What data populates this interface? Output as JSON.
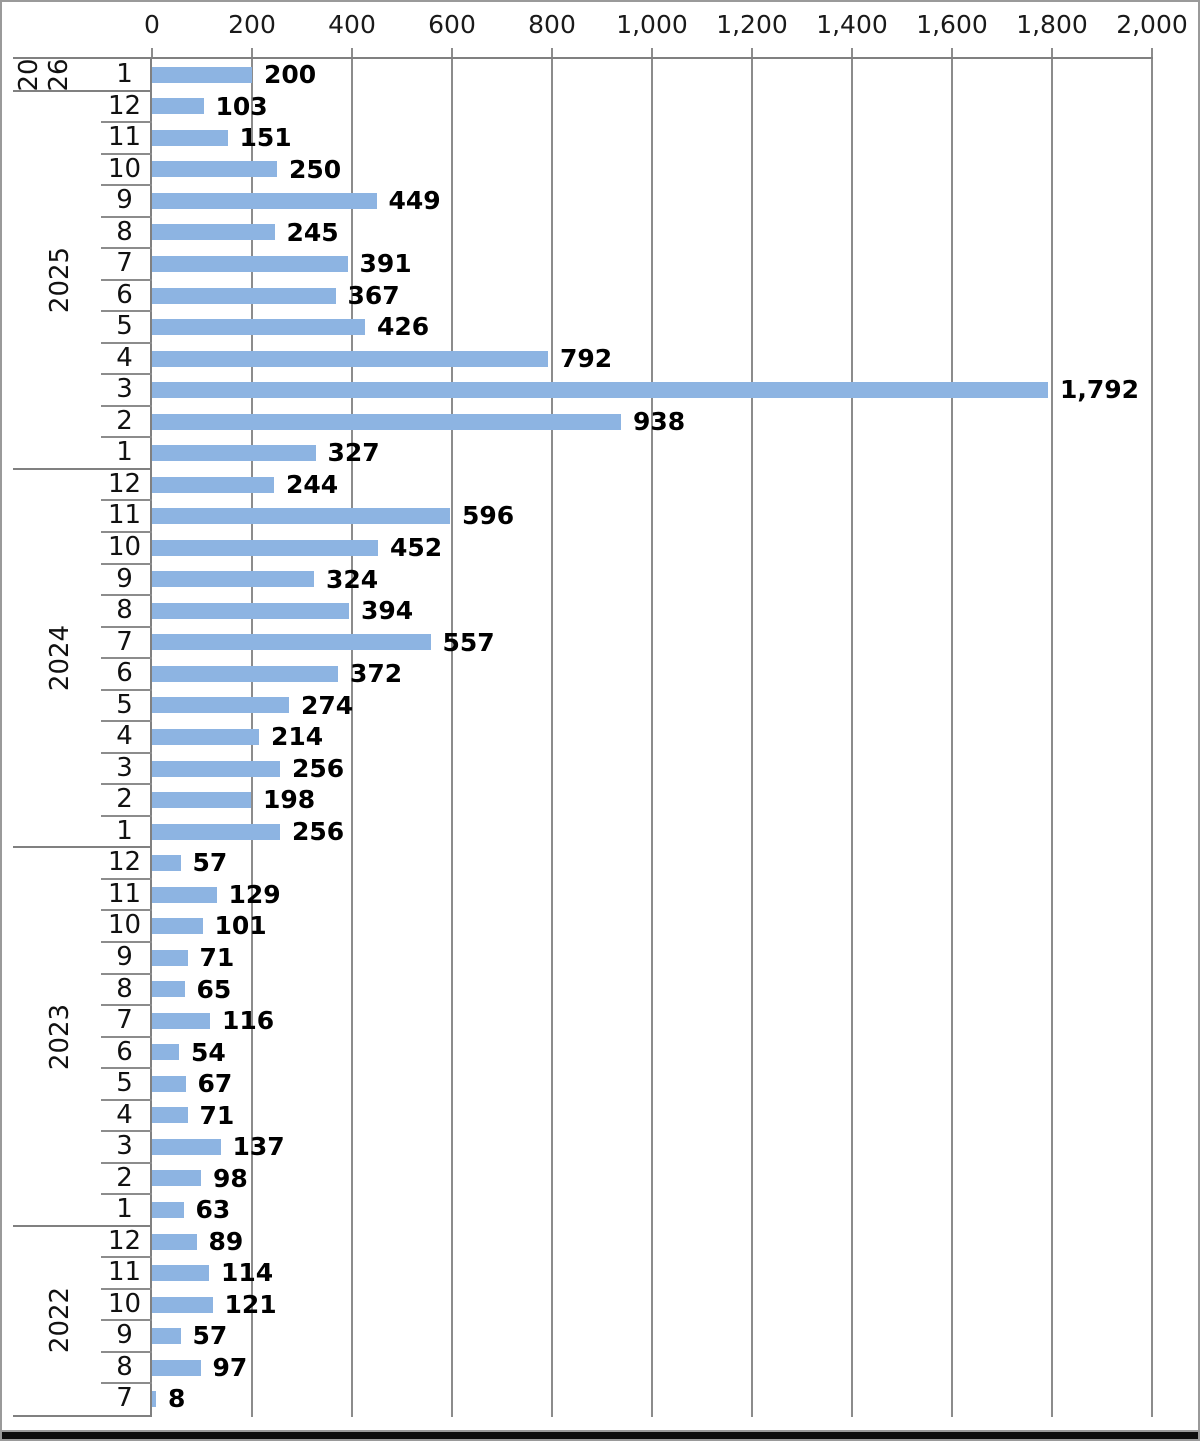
{
  "chart_data": {
    "type": "bar",
    "orientation": "horizontal",
    "title": "",
    "xlabel": "",
    "ylabel": "",
    "value_axis": {
      "min": 0,
      "max": 2000,
      "step": 200,
      "position": "top",
      "tick_labels": [
        "0",
        "200",
        "400",
        "600",
        "800",
        "1,000",
        "1,200",
        "1,400",
        "1,600",
        "1,800",
        "2,000"
      ],
      "grid": true
    },
    "category_axis": {
      "levels": [
        "year",
        "month"
      ],
      "order": "newest-first-top"
    },
    "groups": [
      {
        "year": "2026",
        "rotated_lines": [
          "20",
          "26"
        ],
        "months": [
          {
            "month": "1",
            "value": 200
          }
        ]
      },
      {
        "year": "2025",
        "months": [
          {
            "month": "12",
            "value": 103
          },
          {
            "month": "11",
            "value": 151
          },
          {
            "month": "10",
            "value": 250
          },
          {
            "month": "9",
            "value": 449
          },
          {
            "month": "8",
            "value": 245
          },
          {
            "month": "7",
            "value": 391
          },
          {
            "month": "6",
            "value": 367
          },
          {
            "month": "5",
            "value": 426
          },
          {
            "month": "4",
            "value": 792
          },
          {
            "month": "3",
            "value": 1792
          },
          {
            "month": "2",
            "value": 938
          },
          {
            "month": "1",
            "value": 327
          }
        ]
      },
      {
        "year": "2024",
        "months": [
          {
            "month": "12",
            "value": 244
          },
          {
            "month": "11",
            "value": 596
          },
          {
            "month": "10",
            "value": 452
          },
          {
            "month": "9",
            "value": 324
          },
          {
            "month": "8",
            "value": 394
          },
          {
            "month": "7",
            "value": 557
          },
          {
            "month": "6",
            "value": 372
          },
          {
            "month": "5",
            "value": 274
          },
          {
            "month": "4",
            "value": 214
          },
          {
            "month": "3",
            "value": 256
          },
          {
            "month": "2",
            "value": 198
          },
          {
            "month": "1",
            "value": 256
          }
        ]
      },
      {
        "year": "2023",
        "months": [
          {
            "month": "12",
            "value": 57
          },
          {
            "month": "11",
            "value": 129
          },
          {
            "month": "10",
            "value": 101
          },
          {
            "month": "9",
            "value": 71
          },
          {
            "month": "8",
            "value": 65
          },
          {
            "month": "7",
            "value": 116
          },
          {
            "month": "6",
            "value": 54
          },
          {
            "month": "5",
            "value": 67
          },
          {
            "month": "4",
            "value": 71
          },
          {
            "month": "3",
            "value": 137
          },
          {
            "month": "2",
            "value": 98
          },
          {
            "month": "1",
            "value": 63
          }
        ]
      },
      {
        "year": "2022",
        "months": [
          {
            "month": "12",
            "value": 89
          },
          {
            "month": "11",
            "value": 114
          },
          {
            "month": "10",
            "value": 121
          },
          {
            "month": "9",
            "value": 57
          },
          {
            "month": "8",
            "value": 97
          },
          {
            "month": "7",
            "value": 8
          }
        ]
      }
    ],
    "data_labels": {
      "position": "outside-end",
      "bold": true,
      "thousands_separator": ","
    },
    "colors": {
      "bar": "#8DB4E2",
      "gridline": "#8C8C8C",
      "axis_line": "#808080",
      "text": "#000000",
      "background": "#FFFFFF",
      "window_bottom_edge": "#0D0D0D"
    }
  }
}
